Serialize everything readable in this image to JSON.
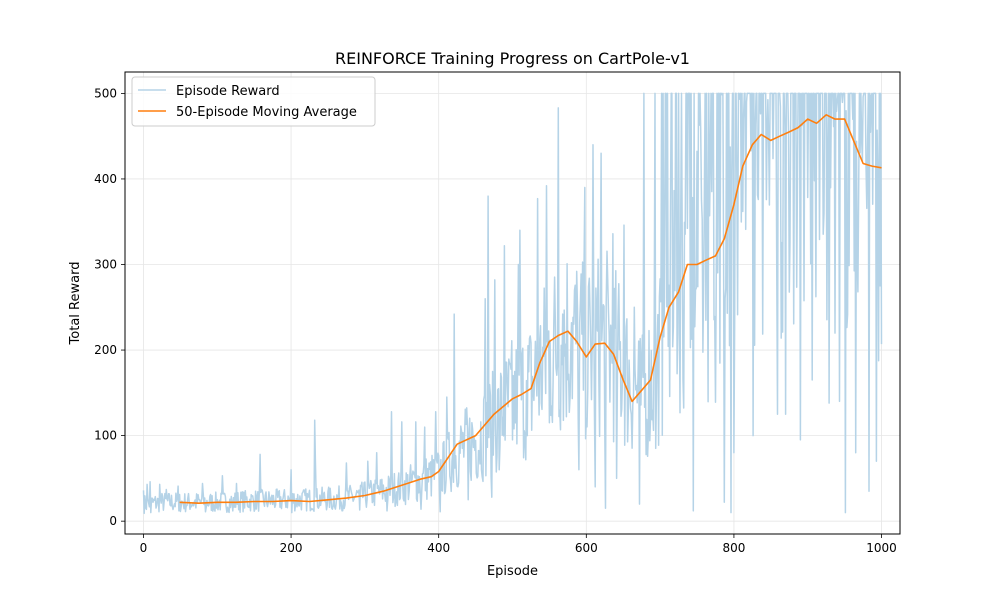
{
  "chart_data": {
    "type": "line",
    "title": "REINFORCE Training Progress on CartPole-v1",
    "xlabel": "Episode",
    "ylabel": "Total Reward",
    "xlim": [
      -25,
      1025
    ],
    "ylim": [
      -15,
      525
    ],
    "x_ticks": [
      0,
      200,
      400,
      600,
      800,
      1000
    ],
    "y_ticks": [
      0,
      100,
      200,
      300,
      400,
      500
    ],
    "grid": true,
    "legend_position": "top-left",
    "series": [
      {
        "name": "Episode Reward",
        "color": "#b5d3e7",
        "style": "noisy",
        "x": [
          0,
          25,
          50,
          75,
          100,
          125,
          150,
          175,
          200,
          225,
          250,
          275,
          300,
          325,
          350,
          375,
          400,
          425,
          450,
          475,
          500,
          525,
          550,
          575,
          600,
          625,
          650,
          675,
          700,
          725,
          750,
          775,
          800,
          825,
          850,
          875,
          900,
          925,
          950,
          975,
          1000
        ],
        "values": [
          20,
          22,
          22,
          22,
          22,
          23,
          24,
          24,
          25,
          25,
          26,
          27,
          30,
          35,
          40,
          48,
          55,
          80,
          95,
          115,
          140,
          155,
          195,
          220,
          195,
          210,
          180,
          140,
          195,
          270,
          305,
          300,
          380,
          430,
          450,
          455,
          465,
          475,
          470,
          420,
          412
        ],
        "highlights": [
          [
            0,
            36
          ],
          [
            5,
            43
          ],
          [
            9,
            46
          ],
          [
            22,
            43
          ],
          [
            31,
            37
          ],
          [
            47,
            41
          ],
          [
            80,
            44
          ],
          [
            107,
            53
          ],
          [
            126,
            44
          ],
          [
            158,
            78
          ],
          [
            200,
            60
          ],
          [
            233,
            70
          ],
          [
            232,
            118
          ],
          [
            275,
            68
          ],
          [
            304,
            70
          ],
          [
            316,
            80
          ],
          [
            336,
            128
          ],
          [
            350,
            116
          ],
          [
            369,
            116
          ],
          [
            381,
            110
          ],
          [
            396,
            128
          ],
          [
            411,
            145
          ],
          [
            421,
            242
          ],
          [
            440,
            221
          ],
          [
            463,
            260
          ],
          [
            467,
            380
          ],
          [
            476,
            282
          ],
          [
            489,
            322
          ],
          [
            508,
            300
          ],
          [
            510,
            340
          ],
          [
            534,
            377
          ],
          [
            546,
            392
          ],
          [
            562,
            483
          ],
          [
            568,
            242
          ],
          [
            580,
            232
          ],
          [
            598,
            390
          ],
          [
            609,
            440
          ],
          [
            620,
            430
          ],
          [
            636,
            336
          ],
          [
            651,
            346
          ],
          [
            665,
            250
          ],
          [
            678,
            500
          ],
          [
            693,
            500
          ],
          [
            707,
            500
          ],
          [
            722,
            500
          ],
          [
            736,
            500
          ],
          [
            752,
            500
          ],
          [
            766,
            500
          ],
          [
            780,
            500
          ],
          [
            798,
            500
          ],
          [
            820,
            500
          ],
          [
            838,
            500
          ],
          [
            860,
            500
          ],
          [
            878,
            500
          ],
          [
            896,
            500
          ],
          [
            915,
            500
          ],
          [
            932,
            500
          ],
          [
            950,
            500
          ],
          [
            964,
            500
          ],
          [
            978,
            500
          ],
          [
            990,
            500
          ],
          [
            998,
            500
          ],
          [
            10,
            10
          ],
          [
            48,
            12
          ],
          [
            84,
            11
          ],
          [
            121,
            12
          ],
          [
            201,
            10
          ],
          [
            256,
            14
          ],
          [
            293,
            13
          ],
          [
            330,
            12
          ],
          [
            376,
            14
          ],
          [
            402,
            11
          ],
          [
            440,
            25
          ],
          [
            472,
            28
          ],
          [
            482,
            60
          ],
          [
            500,
            95
          ],
          [
            520,
            100
          ],
          [
            550,
            115
          ],
          [
            590,
            60
          ],
          [
            600,
            120
          ],
          [
            612,
            40
          ],
          [
            626,
            15
          ],
          [
            641,
            50
          ],
          [
            672,
            20
          ],
          [
            684,
            100
          ],
          [
            694,
            85
          ],
          [
            745,
            12
          ],
          [
            787,
            22
          ],
          [
            796,
            10
          ],
          [
            800,
            80
          ],
          [
            826,
            100
          ],
          [
            859,
            125
          ],
          [
            870,
            125
          ],
          [
            890,
            95
          ],
          [
            906,
            165
          ],
          [
            929,
            138
          ],
          [
            943,
            140
          ],
          [
            951,
            10
          ],
          [
            965,
            80
          ],
          [
            983,
            35
          ],
          [
            993,
            70
          ],
          [
            998,
            275
          ]
        ]
      },
      {
        "name": "50-Episode Moving Average",
        "color": "#ff7f0e",
        "x": [
          49,
          75,
          100,
          125,
          150,
          175,
          200,
          225,
          250,
          275,
          300,
          325,
          350,
          375,
          390,
          400,
          425,
          450,
          475,
          500,
          512,
          525,
          537,
          550,
          562,
          575,
          587,
          600,
          612,
          625,
          637,
          650,
          662,
          672,
          687,
          700,
          712,
          725,
          737,
          750,
          762,
          775,
          787,
          800,
          812,
          825,
          837,
          850,
          862,
          875,
          887,
          900,
          912,
          925,
          937,
          950,
          962,
          975,
          987,
          1000
        ],
        "values": [
          22,
          21,
          22,
          22,
          23,
          23,
          24,
          23,
          25,
          27,
          30,
          35,
          42,
          49,
          52,
          58,
          90,
          100,
          125,
          143,
          148,
          155,
          185,
          210,
          217,
          222,
          210,
          192,
          207,
          208,
          195,
          165,
          140,
          150,
          165,
          215,
          250,
          268,
          300,
          300,
          305,
          310,
          330,
          370,
          415,
          440,
          452,
          445,
          450,
          455,
          460,
          470,
          465,
          475,
          470,
          470,
          445,
          418,
          415,
          413
        ]
      }
    ]
  }
}
